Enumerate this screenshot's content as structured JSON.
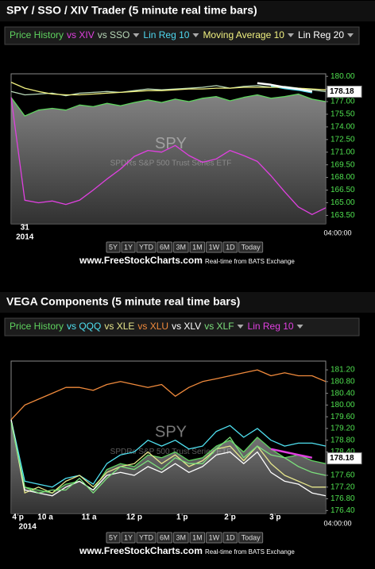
{
  "chart_data": [
    {
      "type": "line",
      "title": "SPY / SSO / XIV Trader (5 minute real time bars)",
      "watermark": "SPY",
      "watermark_subtitle": "SPDRs S&P 500 Trust Series ETF",
      "xlim": [
        0,
        23
      ],
      "xticks": [
        {
          "value": 1,
          "label": "31"
        }
      ],
      "xticks_row2": [
        {
          "value": 1,
          "label": "2014"
        }
      ],
      "end_time": "04:00:00",
      "ylim": [
        162.5,
        180.3
      ],
      "yticks": [
        {
          "value": 163.5,
          "label": "163.50"
        },
        {
          "value": 165,
          "label": "165.00"
        },
        {
          "value": 166.5,
          "label": "166.50"
        },
        {
          "value": 168,
          "label": "168.00"
        },
        {
          "value": 169.5,
          "label": "169.50"
        },
        {
          "value": 171,
          "label": "171.00"
        },
        {
          "value": 172.5,
          "label": "172.50"
        },
        {
          "value": 174,
          "label": "174.00"
        },
        {
          "value": 175.5,
          "label": "175.50"
        },
        {
          "value": 177,
          "label": "177.00"
        },
        {
          "value": 178.5,
          "label": "178.50"
        },
        {
          "value": 180,
          "label": "180.00"
        }
      ],
      "last_price": 178.18,
      "series": [
        {
          "name": "Price History",
          "color": "#5fd35f",
          "fill": "#8a8a8a",
          "values": [
            177.5,
            175.3,
            176.0,
            176.2,
            176.0,
            176.6,
            176.4,
            176.8,
            176.5,
            176.9,
            177.2,
            176.9,
            177.3,
            177.0,
            177.4,
            177.6,
            177.1,
            177.5,
            177.8,
            177.4,
            177.6,
            177.9,
            177.3,
            177.0
          ]
        },
        {
          "name": "vs XIV",
          "color": "#e040e0",
          "values": [
            177.5,
            165.3,
            165.0,
            165.2,
            164.8,
            165.3,
            166.5,
            167.8,
            169.0,
            170.5,
            171.2,
            171.0,
            171.8,
            170.6,
            169.8,
            170.2,
            171.2,
            170.6,
            169.9,
            168.2,
            166.3,
            164.5,
            163.6,
            164.4
          ]
        },
        {
          "name": "vs SSO",
          "color": "#b8d8b8",
          "values": [
            178.2,
            177.8,
            177.9,
            178.0,
            177.7,
            178.0,
            178.1,
            178.2,
            178.1,
            178.3,
            178.5,
            178.4,
            178.5,
            178.6,
            178.7,
            178.9,
            178.6,
            178.8,
            178.9,
            178.7,
            178.8,
            178.6,
            178.4,
            178.2
          ]
        },
        {
          "name": "Lin Reg 10",
          "color": "#4fd8f0",
          "values": [
            null,
            null,
            null,
            null,
            null,
            null,
            null,
            null,
            null,
            null,
            null,
            null,
            null,
            null,
            null,
            null,
            null,
            null,
            null,
            178.9,
            178.6,
            178.4,
            178.1,
            null
          ]
        },
        {
          "name": "Moving Average 10",
          "color": "#f0f080",
          "values": [
            179.3,
            178.6,
            178.2,
            177.9,
            177.8,
            177.8,
            177.9,
            178.0,
            178.1,
            178.2,
            178.3,
            178.3,
            178.4,
            178.5,
            178.5,
            178.6,
            178.6,
            178.7,
            178.7,
            178.7,
            178.7,
            178.6,
            178.5,
            178.4
          ]
        },
        {
          "name": "Lin Reg 20",
          "color": "#ffffff",
          "values": [
            null,
            null,
            null,
            null,
            null,
            null,
            null,
            null,
            null,
            null,
            null,
            null,
            null,
            null,
            null,
            null,
            null,
            null,
            179.2,
            179.0,
            178.7,
            178.5,
            178.2,
            null
          ]
        }
      ],
      "buttons": [
        "5Y",
        "1Y",
        "YTD",
        "6M",
        "3M",
        "1M",
        "1W",
        "1D",
        "Today"
      ],
      "site": "www.FreeStockCharts.com",
      "source": "Real-time from BATS Exchange"
    },
    {
      "type": "line",
      "title": "VEGA Components (5 minute real time bars)",
      "watermark": "SPY",
      "watermark_subtitle": "SPDRs S&P 500 Trust Series ETF",
      "xlim": [
        0,
        23
      ],
      "xticks": [
        {
          "value": 0.5,
          "label": "4 p"
        },
        {
          "value": 2.5,
          "label": "10 a"
        },
        {
          "value": 5.7,
          "label": "11 a"
        },
        {
          "value": 9,
          "label": "12 p"
        },
        {
          "value": 12.5,
          "label": "1 p"
        },
        {
          "value": 16,
          "label": "2 p"
        },
        {
          "value": 19.3,
          "label": "3 p"
        }
      ],
      "xticks_row2": [
        {
          "value": 1.2,
          "label": "2014"
        }
      ],
      "end_time": "04:00:00",
      "ylim": [
        176.3,
        181.5
      ],
      "yticks": [
        {
          "value": 176.4,
          "label": "176.40"
        },
        {
          "value": 176.8,
          "label": "176.80"
        },
        {
          "value": 177.2,
          "label": "177.20"
        },
        {
          "value": 177.6,
          "label": "177.60"
        },
        {
          "value": 178.4,
          "label": "178.40"
        },
        {
          "value": 178.8,
          "label": "178.80"
        },
        {
          "value": 179.2,
          "label": "179.20"
        },
        {
          "value": 179.6,
          "label": "179.60"
        },
        {
          "value": 180,
          "label": "180.00"
        },
        {
          "value": 180.4,
          "label": "180.40"
        },
        {
          "value": 180.8,
          "label": "180.80"
        },
        {
          "value": 181.2,
          "label": "181.20"
        }
      ],
      "last_price": 178.18,
      "series": [
        {
          "name": "Price History",
          "color": "#5fd35f",
          "fill": "#8a8a8a",
          "values": [
            179.5,
            177.2,
            177.1,
            177.0,
            177.3,
            177.4,
            177.1,
            177.8,
            178.0,
            177.9,
            178.3,
            178.2,
            178.4,
            178.1,
            178.2,
            178.6,
            178.8,
            178.4,
            178.9,
            178.5,
            178.2,
            178.3,
            178.1,
            178.0
          ]
        },
        {
          "name": "vs QQQ",
          "color": "#4fe0f0",
          "values": [
            179.5,
            177.4,
            177.3,
            177.2,
            177.5,
            177.6,
            177.3,
            178.0,
            178.3,
            178.4,
            178.8,
            178.6,
            178.8,
            178.5,
            178.6,
            179.1,
            179.3,
            178.9,
            179.2,
            178.8,
            178.6,
            178.7,
            178.7,
            178.6
          ]
        },
        {
          "name": "vs XLE",
          "color": "#e6e68c",
          "values": [
            179.5,
            177.0,
            177.2,
            177.0,
            177.4,
            177.6,
            177.2,
            177.7,
            177.9,
            178.0,
            178.4,
            178.0,
            178.3,
            177.9,
            178.1,
            178.5,
            178.6,
            178.1,
            178.6,
            178.0,
            177.6,
            177.4,
            177.2,
            177.2
          ]
        },
        {
          "name": "vs XLU",
          "color": "#f08a3c",
          "values": [
            179.5,
            180.0,
            180.2,
            180.4,
            180.6,
            180.6,
            180.5,
            180.7,
            180.8,
            180.7,
            180.6,
            180.7,
            180.3,
            180.6,
            180.8,
            180.9,
            181.0,
            181.1,
            181.2,
            181.0,
            181.1,
            181.0,
            181.0,
            180.8
          ]
        },
        {
          "name": "vs XLV",
          "color": "#ffffff",
          "values": [
            179.5,
            177.1,
            177.0,
            176.9,
            177.2,
            177.4,
            177.1,
            177.6,
            177.7,
            177.6,
            177.9,
            177.7,
            178.0,
            177.7,
            177.9,
            178.3,
            178.4,
            178.0,
            178.4,
            177.7,
            177.4,
            177.3,
            177.0,
            176.9
          ]
        },
        {
          "name": "vs XLF",
          "color": "#7ce07c",
          "values": [
            179.4,
            177.2,
            177.0,
            177.1,
            177.1,
            177.5,
            177.0,
            177.5,
            177.9,
            177.8,
            178.1,
            177.8,
            178.2,
            178.0,
            178.0,
            178.5,
            178.9,
            178.2,
            178.6,
            178.3,
            178.2,
            177.9,
            177.7,
            177.6
          ]
        },
        {
          "name": "Lin Reg 10",
          "color": "#e040e0",
          "values": [
            null,
            null,
            null,
            null,
            null,
            null,
            null,
            null,
            null,
            null,
            null,
            null,
            null,
            null,
            null,
            null,
            null,
            null,
            null,
            178.5,
            178.4,
            178.3,
            178.2,
            null
          ]
        }
      ],
      "buttons": [
        "5Y",
        "1Y",
        "YTD",
        "6M",
        "3M",
        "1M",
        "1W",
        "1D",
        "Today"
      ],
      "site": "www.FreeStockCharts.com",
      "source": "Real-time from BATS Exchange"
    }
  ]
}
